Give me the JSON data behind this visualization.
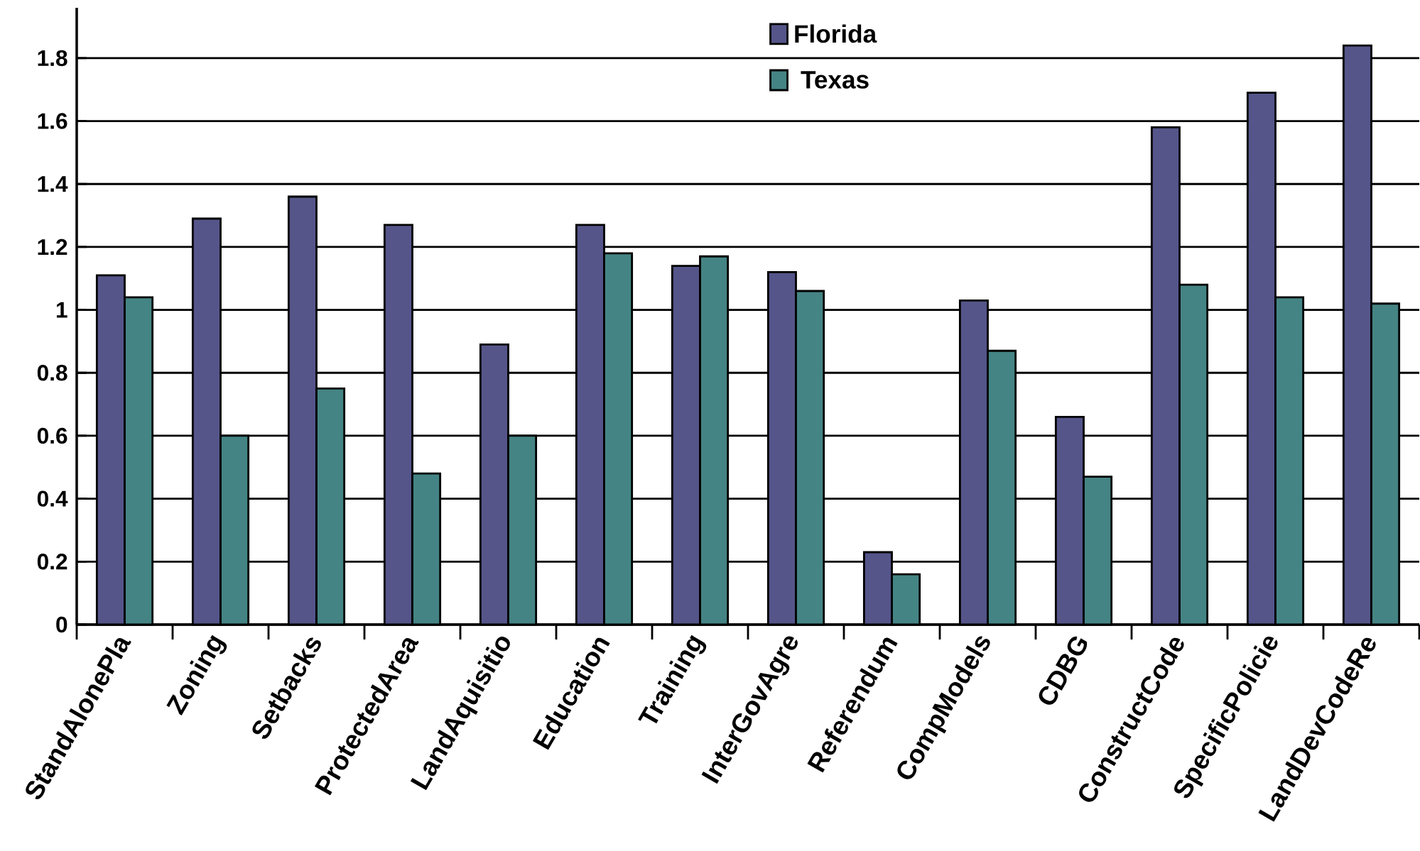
{
  "chart_data": {
    "type": "bar",
    "categories": [
      "StandAlonePla",
      "Zoning",
      "Setbacks",
      "ProtectedArea",
      "LandAquisitio",
      "Education",
      "Training",
      "InterGovAgre",
      "Referendum",
      "CompModels",
      "CDBG",
      "ConstructCode",
      "SpecificPolicie",
      "LandDevCodeRe"
    ],
    "series": [
      {
        "name": "Florida",
        "color": "#55558a",
        "values": [
          1.11,
          1.29,
          1.36,
          1.27,
          0.89,
          1.27,
          1.14,
          1.12,
          0.23,
          1.03,
          0.66,
          1.58,
          1.69,
          1.84
        ]
      },
      {
        "name": "Texas",
        "color": "#458484",
        "values": [
          1.04,
          0.6,
          0.75,
          0.48,
          0.6,
          1.18,
          1.17,
          1.06,
          0.16,
          0.87,
          0.47,
          1.08,
          1.04,
          1.02
        ]
      }
    ],
    "ylim": [
      0,
      1.96
    ],
    "yticks": [
      0,
      0.2,
      0.4,
      0.6,
      0.8,
      1,
      1.2,
      1.4,
      1.6,
      1.8
    ],
    "grid": "y",
    "legend": "top right"
  }
}
